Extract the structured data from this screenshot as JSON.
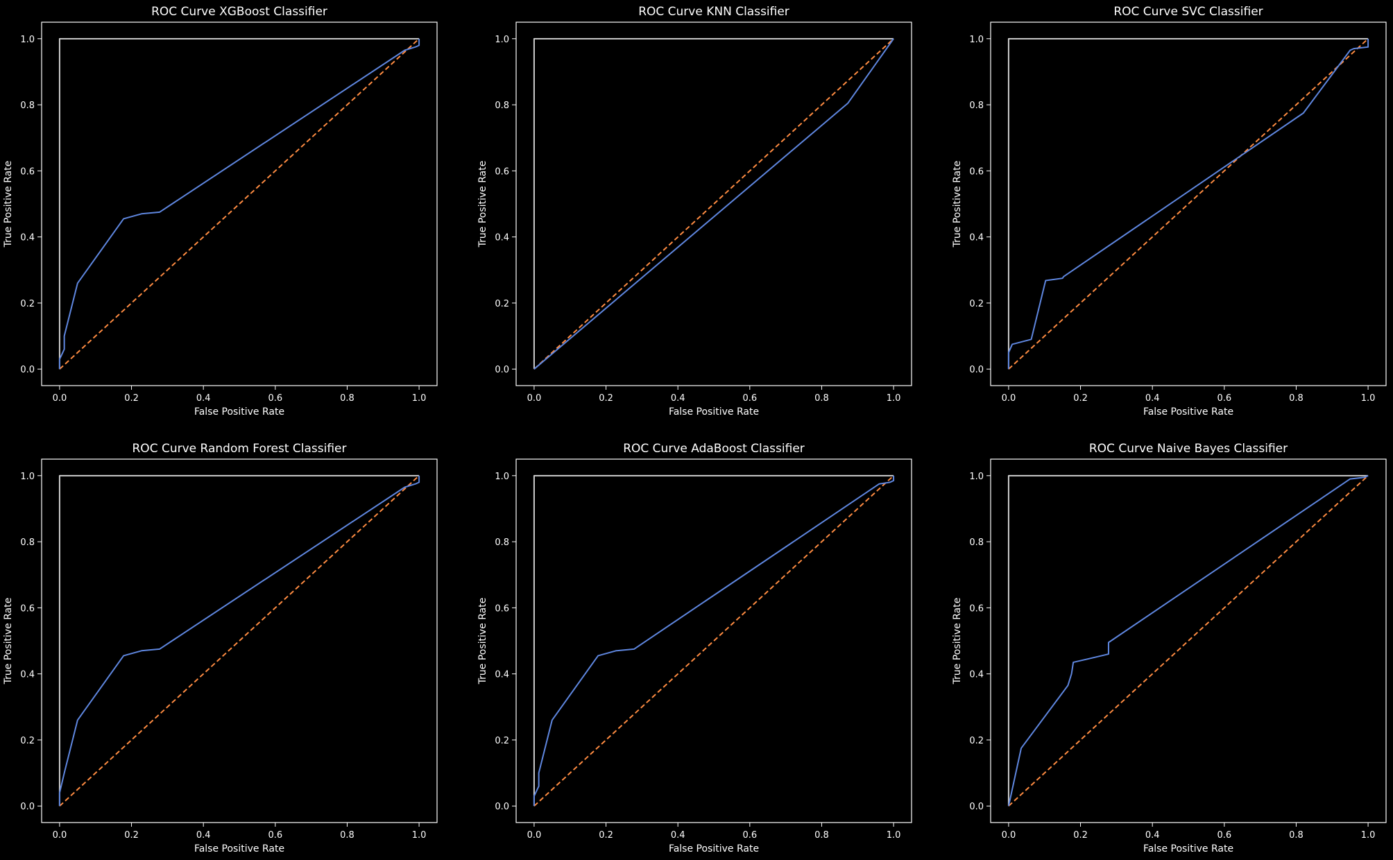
{
  "figure": {
    "background": "#000000",
    "foreground": "#ffffff",
    "curve_color": "#5f87e0",
    "diagonal_color": "#ff8c42",
    "reference_color": "#cfcfcf"
  },
  "chart_data": [
    {
      "type": "line",
      "title": "ROC Curve XGBoost Classifier",
      "xlabel": "False Positive Rate",
      "ylabel": "True Positive Rate",
      "xlim": [
        -0.05,
        1.05
      ],
      "ylim": [
        -0.05,
        1.05
      ],
      "xticks": [
        "0.0",
        "0.2",
        "0.4",
        "0.6",
        "0.8",
        "1.0"
      ],
      "yticks": [
        "0.0",
        "0.2",
        "0.4",
        "0.6",
        "0.8",
        "1.0"
      ],
      "grid": false,
      "series": [
        {
          "role": "curve",
          "x": [
            0.0,
            0.0,
            0.013,
            0.013,
            0.05,
            0.178,
            0.228,
            0.278,
            0.96,
            0.99,
            1.0,
            1.0
          ],
          "y": [
            0.0,
            0.03,
            0.06,
            0.1,
            0.26,
            0.455,
            0.47,
            0.475,
            0.965,
            0.975,
            0.98,
            1.0
          ]
        },
        {
          "role": "chance",
          "style": "dashed",
          "x": [
            0,
            1
          ],
          "y": [
            0,
            1
          ]
        },
        {
          "role": "perfect",
          "x": [
            0,
            0,
            1
          ],
          "y": [
            0,
            1,
            1
          ]
        }
      ]
    },
    {
      "type": "line",
      "title": "ROC Curve KNN Classifier",
      "xlabel": "False Positive Rate",
      "ylabel": "True Positive Rate",
      "xlim": [
        -0.05,
        1.05
      ],
      "ylim": [
        -0.05,
        1.05
      ],
      "xticks": [
        "0.0",
        "0.2",
        "0.4",
        "0.6",
        "0.8",
        "1.0"
      ],
      "yticks": [
        "0.0",
        "0.2",
        "0.4",
        "0.6",
        "0.8",
        "1.0"
      ],
      "grid": false,
      "series": [
        {
          "role": "curve",
          "x": [
            0.0,
            0.873,
            1.0
          ],
          "y": [
            0.0,
            0.805,
            1.0
          ]
        },
        {
          "role": "chance",
          "style": "dashed",
          "x": [
            0,
            1
          ],
          "y": [
            0,
            1
          ]
        },
        {
          "role": "perfect",
          "x": [
            0,
            0,
            1
          ],
          "y": [
            0,
            1,
            1
          ]
        }
      ]
    },
    {
      "type": "line",
      "title": "ROC Curve SVC Classifier",
      "xlabel": "False Positive Rate",
      "ylabel": "True Positive Rate",
      "xlim": [
        -0.05,
        1.05
      ],
      "ylim": [
        -0.05,
        1.05
      ],
      "xticks": [
        "0.0",
        "0.2",
        "0.4",
        "0.6",
        "0.8",
        "1.0"
      ],
      "yticks": [
        "0.0",
        "0.2",
        "0.4",
        "0.6",
        "0.8",
        "1.0"
      ],
      "grid": false,
      "series": [
        {
          "role": "curve",
          "x": [
            0.0,
            0.0,
            0.01,
            0.063,
            0.1,
            0.103,
            0.15,
            0.153,
            0.82,
            0.95,
            0.96,
            1.0,
            1.0
          ],
          "y": [
            0.0,
            0.05,
            0.075,
            0.09,
            0.255,
            0.268,
            0.275,
            0.28,
            0.775,
            0.965,
            0.97,
            0.975,
            1.0
          ]
        },
        {
          "role": "chance",
          "style": "dashed",
          "x": [
            0,
            1
          ],
          "y": [
            0,
            1
          ]
        },
        {
          "role": "perfect",
          "x": [
            0,
            0,
            1
          ],
          "y": [
            0,
            1,
            1
          ]
        }
      ]
    },
    {
      "type": "line",
      "title": "ROC Curve Random Forest Classifier",
      "xlabel": "False Positive Rate",
      "ylabel": "True Positive Rate",
      "xlim": [
        -0.05,
        1.05
      ],
      "ylim": [
        -0.05,
        1.05
      ],
      "xticks": [
        "0.0",
        "0.2",
        "0.4",
        "0.6",
        "0.8",
        "1.0"
      ],
      "yticks": [
        "0.0",
        "0.2",
        "0.4",
        "0.6",
        "0.8",
        "1.0"
      ],
      "grid": false,
      "series": [
        {
          "role": "curve",
          "x": [
            0.0,
            0.0,
            0.013,
            0.05,
            0.178,
            0.228,
            0.278,
            0.96,
            0.99,
            1.0,
            1.0
          ],
          "y": [
            0.0,
            0.04,
            0.1,
            0.26,
            0.455,
            0.47,
            0.475,
            0.965,
            0.975,
            0.98,
            1.0
          ]
        },
        {
          "role": "chance",
          "style": "dashed",
          "x": [
            0,
            1
          ],
          "y": [
            0,
            1
          ]
        },
        {
          "role": "perfect",
          "x": [
            0,
            0,
            1
          ],
          "y": [
            0,
            1,
            1
          ]
        }
      ]
    },
    {
      "type": "line",
      "title": "ROC Curve AdaBoost Classifier",
      "xlabel": "False Positive Rate",
      "ylabel": "True Positive Rate",
      "xlim": [
        -0.05,
        1.05
      ],
      "ylim": [
        -0.05,
        1.05
      ],
      "xticks": [
        "0.0",
        "0.2",
        "0.4",
        "0.6",
        "0.8",
        "1.0"
      ],
      "yticks": [
        "0.0",
        "0.2",
        "0.4",
        "0.6",
        "0.8",
        "1.0"
      ],
      "grid": false,
      "series": [
        {
          "role": "curve",
          "x": [
            0.0,
            0.0,
            0.013,
            0.013,
            0.05,
            0.178,
            0.228,
            0.278,
            0.96,
            0.99,
            1.0,
            1.0
          ],
          "y": [
            0.0,
            0.03,
            0.06,
            0.1,
            0.26,
            0.455,
            0.47,
            0.475,
            0.975,
            0.98,
            0.985,
            1.0
          ]
        },
        {
          "role": "chance",
          "style": "dashed",
          "x": [
            0,
            1
          ],
          "y": [
            0,
            1
          ]
        },
        {
          "role": "perfect",
          "x": [
            0,
            0,
            1
          ],
          "y": [
            0,
            1,
            1
          ]
        }
      ]
    },
    {
      "type": "line",
      "title": "ROC Curve Naive Bayes Classifier",
      "xlabel": "False Positive Rate",
      "ylabel": "True Positive Rate",
      "xlim": [
        -0.05,
        1.05
      ],
      "ylim": [
        -0.05,
        1.05
      ],
      "xticks": [
        "0.0",
        "0.2",
        "0.4",
        "0.6",
        "0.8",
        "1.0"
      ],
      "yticks": [
        "0.0",
        "0.2",
        "0.4",
        "0.6",
        "0.8",
        "1.0"
      ],
      "grid": false,
      "series": [
        {
          "role": "curve",
          "x": [
            0.0,
            0.035,
            0.165,
            0.175,
            0.18,
            0.22,
            0.278,
            0.278,
            0.95,
            0.99,
            1.0
          ],
          "y": [
            0.0,
            0.175,
            0.365,
            0.4,
            0.435,
            0.445,
            0.46,
            0.495,
            0.99,
            0.995,
            1.0
          ]
        },
        {
          "role": "chance",
          "style": "dashed",
          "x": [
            0,
            1
          ],
          "y": [
            0,
            1
          ]
        },
        {
          "role": "perfect",
          "x": [
            0,
            0,
            1
          ],
          "y": [
            0,
            1,
            1
          ]
        }
      ]
    }
  ]
}
